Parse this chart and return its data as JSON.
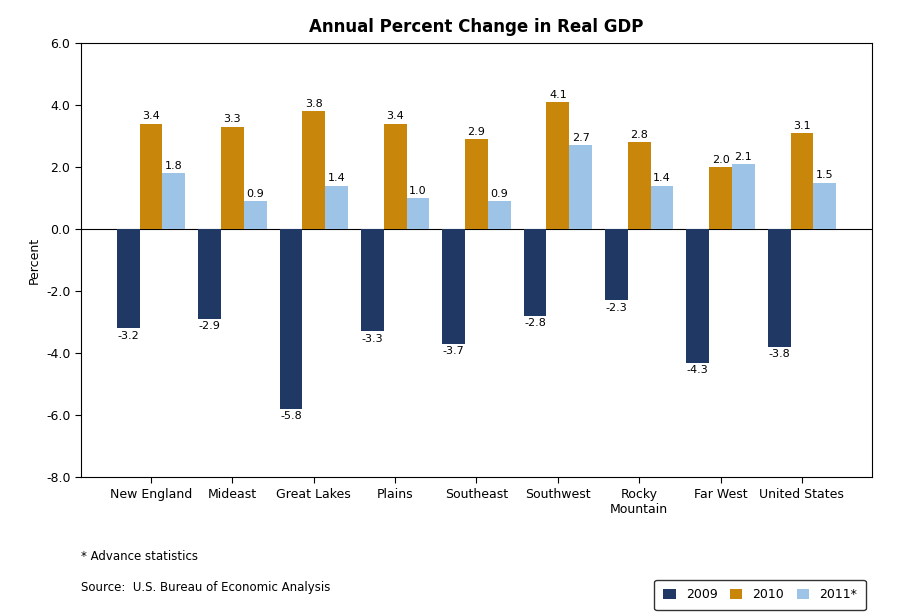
{
  "title": "Annual Percent Change in Real GDP",
  "categories": [
    "New England",
    "Mideast",
    "Great Lakes",
    "Plains",
    "Southeast",
    "Southwest",
    "Rocky\nMountain",
    "Far West",
    "United States"
  ],
  "values_2009": [
    -3.2,
    -2.9,
    -5.8,
    -3.3,
    -3.7,
    -2.8,
    -2.3,
    -4.3,
    -3.8
  ],
  "values_2010": [
    3.4,
    3.3,
    3.8,
    3.4,
    2.9,
    4.1,
    2.8,
    2.0,
    3.1
  ],
  "values_2011": [
    1.8,
    0.9,
    1.4,
    1.0,
    0.9,
    2.7,
    1.4,
    2.1,
    1.5
  ],
  "color_2009": "#1F3864",
  "color_2010": "#C8860A",
  "color_2011": "#9DC3E6",
  "ylabel": "Percent",
  "ylim": [
    -8.0,
    6.0
  ],
  "yticks": [
    -8.0,
    -6.0,
    -4.0,
    -2.0,
    0.0,
    2.0,
    4.0,
    6.0
  ],
  "legend_labels": [
    "2009",
    "2010",
    "2011*"
  ],
  "footnote_line1": "* Advance statistics",
  "footnote_line2": "Source:  U.S. Bureau of Economic Analysis",
  "bar_width": 0.28,
  "title_fontsize": 12,
  "label_fontsize": 8,
  "tick_fontsize": 9,
  "ylabel_fontsize": 9
}
